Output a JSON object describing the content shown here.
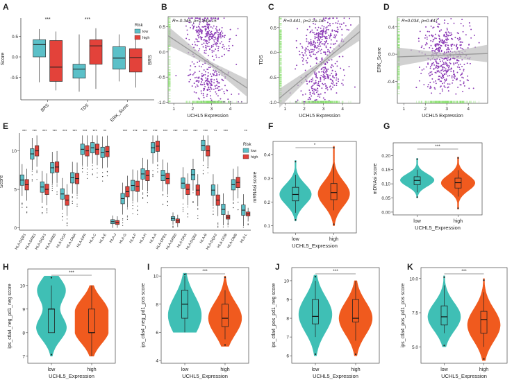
{
  "colors": {
    "low_box": "#5bc0c8",
    "high_box": "#e3423a",
    "teal": "#3fbfb5",
    "orange": "#f05a1e",
    "purple": "#8a39b5",
    "rug": "#86e06b",
    "band": "#bdbdbd",
    "trend": "#9a9a9a",
    "axis": "#444444",
    "text": "#222222"
  },
  "chart_data": [
    {
      "id": "A",
      "type": "box",
      "panel_label": "A",
      "ylabel": "Score",
      "xlabel": "",
      "ylim": [
        -1.05,
        0.95
      ],
      "yticks": [
        -0.5,
        0.0,
        0.5
      ],
      "ytick_labels": [
        "-0.5",
        "0.0",
        "0.5"
      ],
      "categories": [
        "BRS",
        "TDS",
        "ERK_Score"
      ],
      "significance": [
        "***",
        "***",
        ""
      ],
      "legend": {
        "title": "Risk",
        "entries": [
          "low",
          "high"
        ],
        "placement": "top-right"
      },
      "series": [
        {
          "name": "low",
          "boxes": [
            {
              "min": -0.62,
              "q1": 0.0,
              "median": 0.3,
              "q3": 0.42,
              "max": 0.68
            },
            {
              "min": -0.85,
              "q1": -0.52,
              "median": -0.3,
              "q3": -0.18,
              "max": 0.55
            },
            {
              "min": -0.6,
              "q1": -0.3,
              "median": -0.03,
              "q3": 0.25,
              "max": 0.55
            }
          ]
        },
        {
          "name": "high",
          "boxes": [
            {
              "min": -0.82,
              "q1": -0.6,
              "median": -0.25,
              "q3": 0.4,
              "max": 0.62
            },
            {
              "min": -0.78,
              "q1": -0.18,
              "median": 0.27,
              "q3": 0.42,
              "max": 0.7
            },
            {
              "min": -0.75,
              "q1": -0.37,
              "median": -0.02,
              "q3": 0.2,
              "max": 0.5
            }
          ]
        }
      ]
    },
    {
      "id": "B",
      "type": "scatter",
      "panel_label": "B",
      "stat_label": "R=-0.345, p=1.64e-15",
      "xlabel": "UCHL5 Expression",
      "ylabel": "BRS",
      "xlim": [
        0.7,
        4.9
      ],
      "ylim": [
        -1.02,
        0.7
      ],
      "xticks": [
        1,
        2,
        3,
        4
      ],
      "xtick_labels": [
        "1",
        "2",
        "3",
        "4"
      ],
      "yticks": [
        -1.0,
        -0.5,
        0.0,
        0.5
      ],
      "ytick_labels": [
        "-1.0",
        "-0.5",
        "0.0",
        "0.5"
      ],
      "trend": {
        "y_at_xmin": 0.32,
        "y_at_xmax": -0.72
      },
      "seed": 7,
      "n": 480,
      "cluster_y": [
        0.35,
        -0.62
      ],
      "center_x": 2.9
    },
    {
      "id": "C",
      "type": "scatter",
      "panel_label": "C",
      "stat_label": "R=0.441, p=2.2e-16",
      "xlabel": "UCHL5 Expression",
      "ylabel": "TDS",
      "xlim": [
        0.7,
        4.9
      ],
      "ylim": [
        -1.02,
        0.72
      ],
      "xticks": [
        1,
        2,
        3,
        4
      ],
      "xtick_labels": [
        "1",
        "2",
        "3",
        "4"
      ],
      "yticks": [
        -1.0,
        -0.5,
        0.0,
        0.5
      ],
      "ytick_labels": [
        "-1.0",
        "-0.5",
        "0.0",
        "0.5"
      ],
      "trend": {
        "y_at_xmin": -0.92,
        "y_at_xmax": 0.42
      },
      "seed": 13,
      "n": 480,
      "cluster_y": [
        0.25,
        -0.55
      ],
      "center_x": 2.9
    },
    {
      "id": "D",
      "type": "scatter",
      "panel_label": "D",
      "stat_label": "R=0.034, p=0.447",
      "xlabel": "UCHL5 Expression",
      "ylabel": "ERK_Score",
      "xlim": [
        0.7,
        4.9
      ],
      "ylim": [
        -0.72,
        0.55
      ],
      "xticks": [
        1,
        2,
        3,
        4
      ],
      "xtick_labels": [
        "1",
        "2",
        "3",
        "4"
      ],
      "yticks": [
        -0.4,
        0.0,
        0.4
      ],
      "ytick_labels": [
        "-0.4",
        "0.0",
        "0.4"
      ],
      "trend": {
        "y_at_xmin": -0.04,
        "y_at_xmax": 0.01
      },
      "seed": 29,
      "n": 480,
      "cluster_y": [
        0.15,
        -0.25
      ],
      "center_x": 2.9
    },
    {
      "id": "E",
      "type": "box",
      "panel_label": "E",
      "ylabel": "Score",
      "xlabel": "",
      "ylim": [
        -0.3,
        12.3
      ],
      "yticks": [
        0,
        5,
        10
      ],
      "ytick_labels": [
        "0",
        "5",
        "10"
      ],
      "categories": [
        "HLA-DQB1",
        "HLA-DRB1",
        "HLA-DQA1",
        "HLA-DRB5",
        "HLA-DOA",
        "HLA-DMA",
        "HLA-DPA",
        "HLA-C",
        "HLA-E",
        "HLA-J",
        "HLA-G",
        "HLA-F",
        "HLA-H",
        "HLA-A",
        "HLA-DPB1",
        "HLA-DRB6",
        "HLA-DRA",
        "HLA-DQB2",
        "HLA-B",
        "HLA-DQA2",
        "HLA-DOB",
        "HLA-DMB",
        "HLA-L"
      ],
      "significance": [
        "***",
        "***",
        "***",
        "***",
        "***",
        "***",
        "***",
        "***",
        "**",
        "",
        "***",
        "***",
        "***",
        "***",
        "***",
        "***",
        "***",
        "***",
        "***",
        "**",
        "***",
        "",
        "**"
      ],
      "legend": {
        "title": "Risk",
        "entries": [
          "low",
          "high"
        ],
        "placement": "top-right"
      },
      "series": [
        {
          "name": "low",
          "medians": [
            6.2,
            9.6,
            5.3,
            7.8,
            4.4,
            6.5,
            10.2,
            10.4,
            9.8,
            0.8,
            3.8,
            5.5,
            7.0,
            10.4,
            6.8,
            1.2,
            5.8,
            6.9,
            10.7,
            4.9,
            2.4,
            5.6,
            2.3
          ]
        },
        {
          "name": "high",
          "medians": [
            5.6,
            10.0,
            5.0,
            7.9,
            3.6,
            6.4,
            10.0,
            10.2,
            9.9,
            0.7,
            4.7,
            5.4,
            6.8,
            10.6,
            6.4,
            0.9,
            5.0,
            4.9,
            10.0,
            3.6,
            1.4,
            5.9,
            1.8
          ]
        }
      ]
    },
    {
      "id": "F",
      "type": "violin",
      "panel_label": "F",
      "ylabel": "mRNAsi score",
      "xlabel": "UCHL5_Expression",
      "categories": [
        "low",
        "high"
      ],
      "significance": "*",
      "ylim": [
        0.07,
        0.455
      ],
      "yticks": [
        0.1,
        0.2,
        0.3,
        0.4
      ],
      "ytick_labels": [
        "0.1",
        "0.2",
        "0.3",
        "0.4"
      ],
      "groups": [
        {
          "name": "low",
          "min": 0.155,
          "q1": 0.205,
          "median": 0.232,
          "q3": 0.262,
          "max": 0.315,
          "range": [
            0.12,
            0.375
          ],
          "mode": 0.232
        },
        {
          "name": "high",
          "min": 0.165,
          "q1": 0.21,
          "median": 0.24,
          "q3": 0.278,
          "max": 0.36,
          "range": [
            0.1,
            0.435
          ],
          "mode": 0.235
        }
      ]
    },
    {
      "id": "G",
      "type": "violin",
      "panel_label": "G",
      "ylabel": "mDNAsi score",
      "xlabel": "UCHL5_Expression",
      "categories": [
        "low",
        "high"
      ],
      "significance": "***",
      "ylim": [
        -0.01,
        0.245
      ],
      "yticks": [
        0.0,
        0.05,
        0.1,
        0.15,
        0.2
      ],
      "ytick_labels": [
        "0.00",
        "0.05",
        "0.10",
        "0.15",
        "0.20"
      ],
      "groups": [
        {
          "name": "low",
          "min": 0.07,
          "q1": 0.097,
          "median": 0.112,
          "q3": 0.125,
          "max": 0.15,
          "range": [
            0.05,
            0.19
          ],
          "mode": 0.113
        },
        {
          "name": "high",
          "min": 0.055,
          "q1": 0.085,
          "median": 0.104,
          "q3": 0.12,
          "max": 0.148,
          "range": [
            0.01,
            0.195
          ],
          "mode": 0.103
        }
      ]
    },
    {
      "id": "H",
      "type": "violin",
      "panel_label": "H",
      "ylabel": "ips_ctla4_neg_pd1_neg score",
      "xlabel": "UCHL5_Expression",
      "categories": [
        "low",
        "high"
      ],
      "significance": "***",
      "ylim": [
        6.7,
        10.7
      ],
      "yticks": [
        7,
        8,
        9,
        10
      ],
      "ytick_labels": [
        "7",
        "8",
        "9",
        "10"
      ],
      "groups": [
        {
          "name": "low",
          "min": 8.0,
          "q1": 8.0,
          "median": 9.0,
          "q3": 9.0,
          "max": 10.0,
          "range": [
            7.0,
            10.4
          ],
          "mode": 9.0,
          "bimodal": [
            8.2,
            9.8
          ]
        },
        {
          "name": "high",
          "min": 7.0,
          "q1": 8.0,
          "median": 8.0,
          "q3": 9.0,
          "max": 10.0,
          "range": [
            7.0,
            10.0
          ],
          "mode": 8.0,
          "bimodal": [
            8.0,
            9.0
          ]
        }
      ]
    },
    {
      "id": "I",
      "type": "violin",
      "panel_label": "I",
      "ylabel": "ips_ctla4_neg_pd1_pos score",
      "xlabel": "UCHL5_Expression",
      "categories": [
        "low",
        "high"
      ],
      "significance": "***",
      "ylim": [
        3.8,
        10.6
      ],
      "yticks": [
        4,
        6,
        8,
        10
      ],
      "ytick_labels": [
        "4",
        "6",
        "8",
        "10"
      ],
      "groups": [
        {
          "name": "low",
          "min": 6.0,
          "q1": 7.0,
          "median": 8.0,
          "q3": 9.0,
          "max": 10.0,
          "range": [
            6.0,
            10.2
          ],
          "mode": 7.2
        },
        {
          "name": "high",
          "min": 5.5,
          "q1": 6.4,
          "median": 7.0,
          "q3": 8.0,
          "max": 9.0,
          "range": [
            5.0,
            10.0
          ],
          "mode": 7.0
        }
      ]
    },
    {
      "id": "J",
      "type": "violin",
      "panel_label": "J",
      "ylabel": "ips_ctla4_pos_pd1_neg score",
      "xlabel": "UCHL5_Expression",
      "categories": [
        "low",
        "high"
      ],
      "significance": "***",
      "ylim": [
        5.6,
        10.7
      ],
      "yticks": [
        6,
        7,
        8,
        9,
        10
      ],
      "ytick_labels": [
        "6",
        "7",
        "8",
        "9",
        "10"
      ],
      "groups": [
        {
          "name": "low",
          "min": 7.0,
          "q1": 7.7,
          "median": 8.1,
          "q3": 9.0,
          "max": 10.0,
          "range": [
            6.0,
            10.3
          ],
          "mode": 8.2
        },
        {
          "name": "high",
          "min": 6.8,
          "q1": 7.8,
          "median": 8.0,
          "q3": 9.0,
          "max": 10.0,
          "range": [
            6.0,
            10.0
          ],
          "mode": 8.0
        }
      ]
    },
    {
      "id": "K",
      "type": "violin",
      "panel_label": "K",
      "ylabel": "ips_ctla4_pos_pd1_pos score",
      "xlabel": "UCHL5_Expression",
      "categories": [
        "low",
        "high"
      ],
      "significance": "***",
      "ylim": [
        3.8,
        10.8
      ],
      "yticks": [
        5.0,
        7.5,
        10.0
      ],
      "ytick_labels": [
        "5.0",
        "7.5",
        "10.0"
      ],
      "groups": [
        {
          "name": "low",
          "min": 6.0,
          "q1": 6.6,
          "median": 7.2,
          "q3": 8.0,
          "max": 9.5,
          "range": [
            5.0,
            10.2
          ],
          "mode": 7.2
        },
        {
          "name": "high",
          "min": 5.0,
          "q1": 6.0,
          "median": 7.0,
          "q3": 7.6,
          "max": 9.0,
          "range": [
            4.0,
            10.0
          ],
          "mode": 6.6
        }
      ]
    }
  ]
}
